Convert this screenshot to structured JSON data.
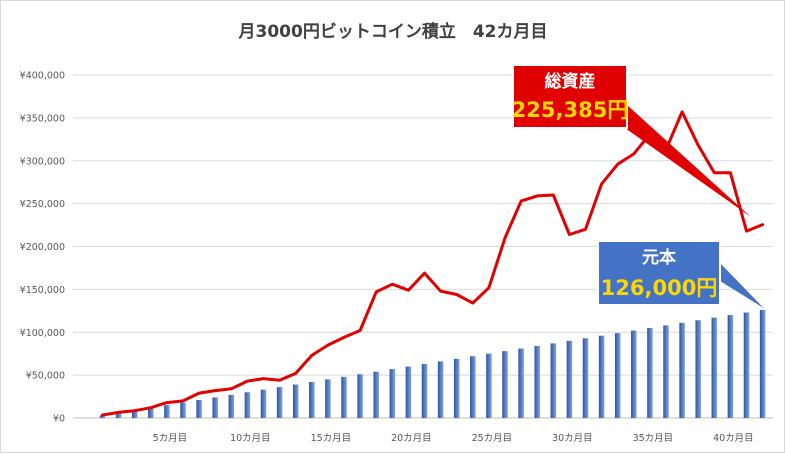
{
  "chart_data": {
    "type": "bar",
    "title": "月3000円ビットコイン積立　42カ月目",
    "xlabel": "",
    "ylabel": "",
    "ylim": [
      0,
      400000
    ],
    "yticks": [
      "¥0",
      "¥50,000",
      "¥100,000",
      "¥150,000",
      "¥200,000",
      "¥250,000",
      "¥300,000",
      "¥350,000",
      "¥400,000"
    ],
    "xtick_labels": [
      "5カ月目",
      "10カ月目",
      "15カ月目",
      "20カ月目",
      "25カ月目",
      "30カ月目",
      "35カ月目",
      "40カ月目"
    ],
    "xtick_months": [
      5,
      10,
      15,
      20,
      25,
      30,
      35,
      40
    ],
    "grid": true,
    "categories": [
      1,
      2,
      3,
      4,
      5,
      6,
      7,
      8,
      9,
      10,
      11,
      12,
      13,
      14,
      15,
      16,
      17,
      18,
      19,
      20,
      21,
      22,
      23,
      24,
      25,
      26,
      27,
      28,
      29,
      30,
      31,
      32,
      33,
      34,
      35,
      36,
      37,
      38,
      39,
      40,
      41,
      42
    ],
    "series": [
      {
        "kind": "bar",
        "color": "#4472c4",
        "values": [
          3000,
          6000,
          9000,
          12000,
          15000,
          18000,
          21000,
          24000,
          27000,
          30000,
          33000,
          36000,
          39000,
          42000,
          45000,
          48000,
          51000,
          54000,
          57000,
          60000,
          63000,
          66000,
          69000,
          72000,
          75000,
          78000,
          81000,
          84000,
          87000,
          90000,
          93000,
          96000,
          99000,
          102000,
          105000,
          108000,
          111000,
          114000,
          117000,
          120000,
          123000,
          126000
        ]
      },
      {
        "kind": "line",
        "color": "#e00000",
        "values": [
          3500,
          6500,
          8500,
          12000,
          18000,
          20000,
          29000,
          32000,
          34000,
          43000,
          46000,
          44000,
          52000,
          73000,
          85000,
          94000,
          102000,
          147000,
          156000,
          149000,
          169000,
          148000,
          144000,
          134000,
          152000,
          210000,
          253000,
          259000,
          260000,
          214000,
          220000,
          273000,
          296000,
          308000,
          331000,
          313000,
          357000,
          318000,
          286000,
          286000,
          218000,
          225385
        ]
      }
    ],
    "annotations": [
      {
        "name": "total-assets",
        "header": "総資産",
        "value": "225,385円",
        "fill": "#e00000",
        "value_color": "#ffd700",
        "points_to_month": 42
      },
      {
        "name": "principal",
        "header": "元本",
        "value": "126,000円",
        "fill": "#4472c4",
        "value_color": "#ffd700",
        "points_to_month": 42
      }
    ]
  }
}
